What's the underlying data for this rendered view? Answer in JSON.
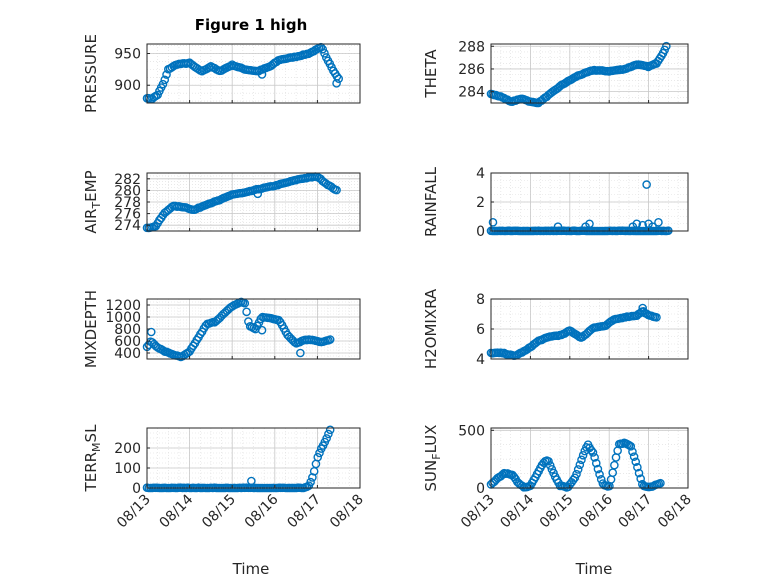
{
  "figure_title": "Figure 1 high",
  "colors": {
    "marker": "#0072BD",
    "axis": "#262626",
    "grid": "#c8c8c8",
    "background": "#ffffff"
  },
  "x_axis": {
    "label": "Time",
    "range_days": [
      "08/13",
      "08/18"
    ],
    "tick_labels": [
      "08/13",
      "08/14",
      "08/15",
      "08/16",
      "08/17",
      "08/18"
    ]
  },
  "chart_data": [
    {
      "type": "scatter",
      "ylabel": "PRESSURE",
      "title": "Figure 1 high",
      "ylim": [
        872,
        965
      ],
      "yticks": [
        900,
        950
      ],
      "grid": "on",
      "keypoints": [
        [
          13.0,
          880
        ],
        [
          13.1,
          878
        ],
        [
          13.25,
          885
        ],
        [
          13.4,
          905
        ],
        [
          13.5,
          925
        ],
        [
          13.7,
          933
        ],
        [
          14.0,
          935
        ],
        [
          14.2,
          925
        ],
        [
          14.3,
          922
        ],
        [
          14.5,
          930
        ],
        [
          14.7,
          922
        ],
        [
          15.0,
          932
        ],
        [
          15.3,
          925
        ],
        [
          15.6,
          922
        ],
        [
          15.9,
          930
        ],
        [
          16.1,
          940
        ],
        [
          16.5,
          945
        ],
        [
          16.8,
          950
        ],
        [
          17.0,
          957
        ],
        [
          17.1,
          960
        ],
        [
          17.2,
          945
        ],
        [
          17.3,
          933
        ],
        [
          17.4,
          920
        ],
        [
          17.5,
          910
        ]
      ],
      "outliers": [
        [
          17.45,
          903
        ],
        [
          15.7,
          917
        ]
      ]
    },
    {
      "type": "scatter",
      "ylabel": "THETA",
      "ylim": [
        283,
        288.2
      ],
      "yticks": [
        284,
        286,
        288
      ],
      "grid": "on",
      "keypoints": [
        [
          13.0,
          283.8
        ],
        [
          13.3,
          283.5
        ],
        [
          13.5,
          283.1
        ],
        [
          13.8,
          283.4
        ],
        [
          14.0,
          283.1
        ],
        [
          14.2,
          283.0
        ],
        [
          14.5,
          283.8
        ],
        [
          14.8,
          284.6
        ],
        [
          15.2,
          285.4
        ],
        [
          15.6,
          285.9
        ],
        [
          16.0,
          285.8
        ],
        [
          16.4,
          286.0
        ],
        [
          16.7,
          286.4
        ],
        [
          17.0,
          286.2
        ],
        [
          17.2,
          286.5
        ],
        [
          17.35,
          287.3
        ],
        [
          17.45,
          288.0
        ]
      ],
      "outliers": []
    },
    {
      "type": "scatter",
      "ylabel": "AIR_TEMP",
      "ylim": [
        273,
        283
      ],
      "yticks": [
        274,
        276,
        278,
        280,
        282
      ],
      "grid": "on",
      "keypoints": [
        [
          13.0,
          273.5
        ],
        [
          13.2,
          273.8
        ],
        [
          13.4,
          276.0
        ],
        [
          13.6,
          277.3
        ],
        [
          13.9,
          277.1
        ],
        [
          14.1,
          276.6
        ],
        [
          14.4,
          277.6
        ],
        [
          14.7,
          278.3
        ],
        [
          15.0,
          279.3
        ],
        [
          15.3,
          279.6
        ],
        [
          15.6,
          280.2
        ],
        [
          16.0,
          280.8
        ],
        [
          16.3,
          281.4
        ],
        [
          16.6,
          282.0
        ],
        [
          16.8,
          282.2
        ],
        [
          17.0,
          282.4
        ],
        [
          17.2,
          281.2
        ],
        [
          17.45,
          280.0
        ]
      ],
      "outliers": [
        [
          15.6,
          279.4
        ]
      ]
    },
    {
      "type": "scatter",
      "ylabel": "RAINFALL",
      "ylim": [
        0,
        4
      ],
      "yticks": [
        0,
        2,
        4
      ],
      "grid": "on",
      "keypoints": [
        [
          13.0,
          0
        ],
        [
          17.5,
          0
        ]
      ],
      "outliers": [
        [
          13.05,
          0.6
        ],
        [
          14.7,
          0.3
        ],
        [
          15.4,
          0.3
        ],
        [
          15.5,
          0.5
        ],
        [
          16.6,
          0.3
        ],
        [
          16.7,
          0.5
        ],
        [
          16.85,
          0.4
        ],
        [
          16.95,
          3.2
        ],
        [
          17.0,
          0.5
        ],
        [
          17.1,
          0.3
        ],
        [
          17.25,
          0.6
        ]
      ]
    },
    {
      "type": "scatter",
      "ylabel": "MIXDEPTH",
      "ylim": [
        300,
        1300
      ],
      "yticks": [
        400,
        600,
        800,
        1000,
        1200
      ],
      "grid": "on",
      "keypoints": [
        [
          13.0,
          500
        ],
        [
          13.1,
          600
        ],
        [
          13.2,
          520
        ],
        [
          13.4,
          430
        ],
        [
          13.6,
          380
        ],
        [
          13.8,
          330
        ],
        [
          14.0,
          420
        ],
        [
          14.2,
          650
        ],
        [
          14.4,
          880
        ],
        [
          14.6,
          920
        ],
        [
          14.8,
          1050
        ],
        [
          15.0,
          1180
        ],
        [
          15.2,
          1250
        ],
        [
          15.3,
          1230
        ],
        [
          15.4,
          850
        ],
        [
          15.55,
          800
        ],
        [
          15.7,
          1000
        ],
        [
          15.9,
          980
        ],
        [
          16.1,
          950
        ],
        [
          16.3,
          700
        ],
        [
          16.5,
          560
        ],
        [
          16.7,
          620
        ],
        [
          16.9,
          620
        ],
        [
          17.1,
          580
        ],
        [
          17.3,
          620
        ]
      ],
      "outliers": [
        [
          13.1,
          750
        ],
        [
          15.7,
          780
        ],
        [
          16.6,
          400
        ]
      ]
    },
    {
      "type": "scatter",
      "ylabel": "H2OMIXRA",
      "ylim": [
        4,
        8
      ],
      "yticks": [
        4,
        6,
        8
      ],
      "grid": "on",
      "keypoints": [
        [
          13.0,
          4.4
        ],
        [
          13.3,
          4.4
        ],
        [
          13.6,
          4.2
        ],
        [
          13.9,
          4.6
        ],
        [
          14.2,
          5.2
        ],
        [
          14.5,
          5.5
        ],
        [
          14.8,
          5.6
        ],
        [
          15.0,
          5.9
        ],
        [
          15.3,
          5.4
        ],
        [
          15.6,
          6.1
        ],
        [
          15.9,
          6.2
        ],
        [
          16.1,
          6.6
        ],
        [
          16.4,
          6.8
        ],
        [
          16.7,
          6.9
        ],
        [
          16.85,
          7.2
        ],
        [
          17.0,
          6.9
        ],
        [
          17.2,
          6.8
        ]
      ],
      "outliers": [
        [
          16.85,
          7.4
        ]
      ]
    },
    {
      "type": "scatter",
      "ylabel": "TERR_MSL",
      "ylim": [
        0,
        300
      ],
      "yticks": [
        0,
        100,
        200
      ],
      "grid": "on",
      "keypoints": [
        [
          13.0,
          0
        ],
        [
          16.7,
          0
        ],
        [
          16.8,
          10
        ],
        [
          16.9,
          60
        ],
        [
          17.0,
          150
        ],
        [
          17.1,
          200
        ],
        [
          17.2,
          240
        ],
        [
          17.3,
          290
        ]
      ],
      "outliers": [
        [
          15.45,
          35
        ]
      ]
    },
    {
      "type": "scatter",
      "ylabel": "SUN_FLUX",
      "ylim": [
        0,
        520
      ],
      "yticks": [
        0,
        500
      ],
      "grid": "on",
      "keypoints": [
        [
          13.0,
          30
        ],
        [
          13.15,
          80
        ],
        [
          13.35,
          130
        ],
        [
          13.55,
          110
        ],
        [
          13.7,
          40
        ],
        [
          13.85,
          5
        ],
        [
          14.0,
          20
        ],
        [
          14.1,
          80
        ],
        [
          14.2,
          140
        ],
        [
          14.35,
          230
        ],
        [
          14.45,
          240
        ],
        [
          14.6,
          120
        ],
        [
          14.75,
          20
        ],
        [
          14.95,
          5
        ],
        [
          15.15,
          100
        ],
        [
          15.3,
          250
        ],
        [
          15.45,
          380
        ],
        [
          15.6,
          300
        ],
        [
          15.75,
          120
        ],
        [
          15.85,
          30
        ],
        [
          16.0,
          10
        ],
        [
          16.1,
          150
        ],
        [
          16.25,
          380
        ],
        [
          16.4,
          390
        ],
        [
          16.55,
          360
        ],
        [
          16.7,
          200
        ],
        [
          16.85,
          20
        ],
        [
          17.0,
          5
        ],
        [
          17.3,
          40
        ]
      ],
      "outliers": []
    }
  ]
}
